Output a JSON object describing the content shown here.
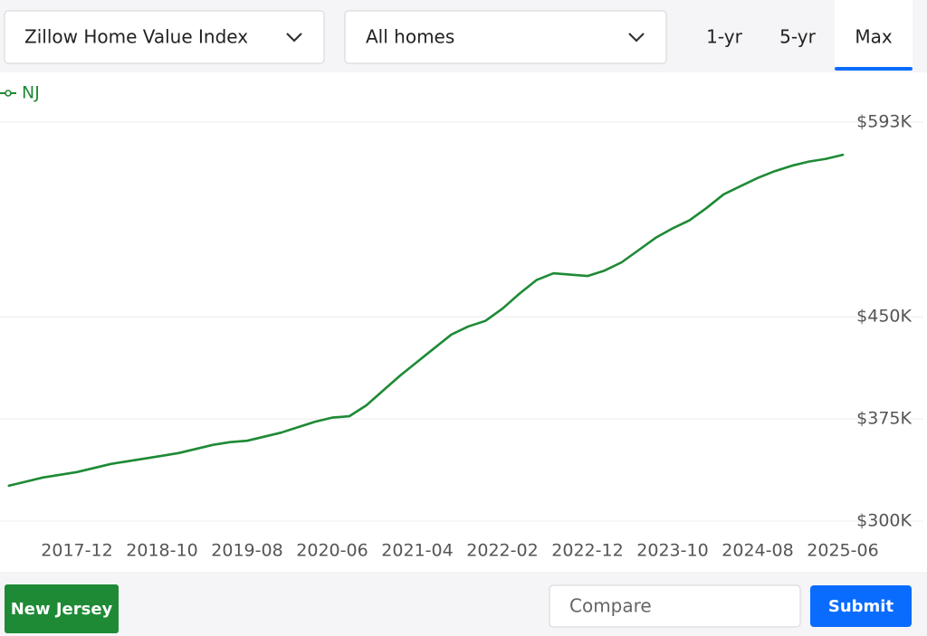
{
  "ui": {
    "metric_select": "Zillow Home Value Index",
    "home_type_select": "All homes",
    "ranges": [
      "1-yr",
      "5-yr",
      "Max"
    ],
    "active_range": 2,
    "location_button": "New Jersey",
    "compare_placeholder": "Compare",
    "submit_button": "Submit"
  },
  "chart_data": {
    "type": "line",
    "categories": [
      null,
      null,
      null,
      null,
      "2017-12",
      null,
      null,
      null,
      null,
      "2018-10",
      null,
      null,
      null,
      null,
      "2019-08",
      null,
      null,
      null,
      null,
      "2020-06",
      null,
      null,
      null,
      null,
      "2021-04",
      null,
      null,
      null,
      null,
      "2022-02",
      null,
      null,
      null,
      null,
      "2022-12",
      null,
      null,
      null,
      null,
      "2023-10",
      null,
      null,
      null,
      null,
      "2024-08",
      null,
      null,
      null,
      null,
      "2025-06"
    ],
    "series": [
      {
        "name": "NJ",
        "color": "#1e8a35",
        "values": [
          326000,
          329000,
          332000,
          334000,
          336000,
          339000,
          342000,
          344000,
          346000,
          348000,
          350000,
          353000,
          356000,
          358000,
          359000,
          362000,
          365000,
          369000,
          373000,
          376000,
          377000,
          385000,
          396000,
          407000,
          417000,
          427000,
          437000,
          443000,
          447000,
          456000,
          467000,
          477000,
          482000,
          481000,
          480000,
          484000,
          490000,
          499000,
          508000,
          515000,
          521000,
          530000,
          540000,
          546000,
          552000,
          557000,
          561000,
          564000,
          566000,
          569000
        ]
      }
    ],
    "ylim": [
      300000,
      593000
    ],
    "yticks": [
      {
        "value": 300000,
        "label": "$300K"
      },
      {
        "value": 375000,
        "label": "$375K"
      },
      {
        "value": 450000,
        "label": "$450K"
      },
      {
        "value": 593000,
        "label": "$593K"
      }
    ],
    "grid": true,
    "legend": "top-left"
  }
}
